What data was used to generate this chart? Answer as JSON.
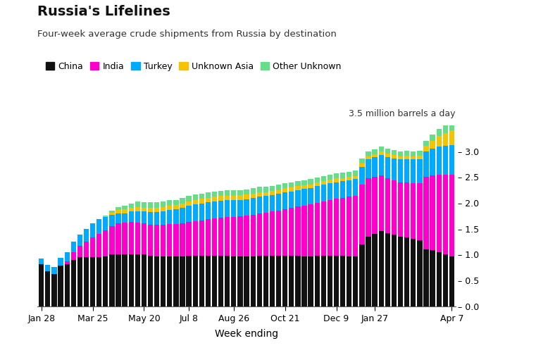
{
  "title": "Russia's Lifelines",
  "subtitle": "Four-week average crude shipments from Russia by destination",
  "xlabel": "Week ending",
  "annotation": "3.5 million barrels a day",
  "legend_labels": [
    "China",
    "India",
    "Turkey",
    "Unknown Asia",
    "Other Unknown"
  ],
  "colors": [
    "#111111",
    "#FF00CC",
    "#00AAFF",
    "#F5C400",
    "#66DD88"
  ],
  "ylim": [
    0,
    3.5
  ],
  "yticks": [
    0,
    0.5,
    1.0,
    1.5,
    2.0,
    2.5,
    3.0
  ],
  "xtick_labels": [
    "Jan 28",
    "Mar 25",
    "May 20",
    "Jul 8",
    "Aug 26",
    "Oct 21",
    "Dec 9",
    "Jan 27",
    "Apr 7"
  ],
  "xtick_positions": [
    0,
    8,
    16,
    23,
    30,
    38,
    46,
    52,
    64
  ],
  "background_color": "#FFFFFF",
  "num_bars": 65,
  "china": [
    0.82,
    0.68,
    0.62,
    0.78,
    0.82,
    0.9,
    0.95,
    0.95,
    0.95,
    0.95,
    0.97,
    1.0,
    1.0,
    1.0,
    1.0,
    1.0,
    1.0,
    0.98,
    0.97,
    0.97,
    0.97,
    0.97,
    0.97,
    0.98,
    0.98,
    0.98,
    0.98,
    0.98,
    0.98,
    0.98,
    0.97,
    0.97,
    0.97,
    0.97,
    0.98,
    0.98,
    0.98,
    0.98,
    0.98,
    0.98,
    0.98,
    0.97,
    0.97,
    0.98,
    0.98,
    0.98,
    0.98,
    0.98,
    0.97,
    0.97,
    1.2,
    1.35,
    1.4,
    1.45,
    1.42,
    1.38,
    1.35,
    1.33,
    1.3,
    1.28,
    1.1,
    1.08,
    1.05,
    1.0,
    0.97
  ],
  "india": [
    0.0,
    0.0,
    0.0,
    0.0,
    0.05,
    0.15,
    0.22,
    0.3,
    0.38,
    0.45,
    0.5,
    0.55,
    0.6,
    0.62,
    0.63,
    0.62,
    0.6,
    0.6,
    0.6,
    0.6,
    0.62,
    0.62,
    0.63,
    0.65,
    0.67,
    0.68,
    0.7,
    0.72,
    0.73,
    0.75,
    0.76,
    0.77,
    0.78,
    0.8,
    0.82,
    0.83,
    0.85,
    0.87,
    0.9,
    0.92,
    0.95,
    0.98,
    1.0,
    1.02,
    1.05,
    1.08,
    1.1,
    1.12,
    1.15,
    1.17,
    1.15,
    1.12,
    1.1,
    1.08,
    1.05,
    1.05,
    1.05,
    1.07,
    1.08,
    1.1,
    1.4,
    1.45,
    1.5,
    1.55,
    1.58
  ],
  "turkey": [
    0.1,
    0.12,
    0.14,
    0.15,
    0.18,
    0.2,
    0.22,
    0.25,
    0.27,
    0.28,
    0.25,
    0.22,
    0.2,
    0.18,
    0.2,
    0.22,
    0.23,
    0.24,
    0.25,
    0.26,
    0.27,
    0.28,
    0.3,
    0.31,
    0.32,
    0.33,
    0.33,
    0.33,
    0.33,
    0.32,
    0.32,
    0.32,
    0.32,
    0.32,
    0.32,
    0.32,
    0.32,
    0.32,
    0.32,
    0.32,
    0.32,
    0.32,
    0.32,
    0.32,
    0.32,
    0.32,
    0.32,
    0.32,
    0.32,
    0.32,
    0.35,
    0.37,
    0.38,
    0.4,
    0.42,
    0.43,
    0.44,
    0.45,
    0.46,
    0.47,
    0.5,
    0.52,
    0.54,
    0.55,
    0.57
  ],
  "unknown_asia": [
    0.0,
    0.0,
    0.0,
    0.0,
    0.0,
    0.0,
    0.0,
    0.0,
    0.0,
    0.0,
    0.02,
    0.04,
    0.06,
    0.07,
    0.07,
    0.08,
    0.08,
    0.09,
    0.09,
    0.09,
    0.09,
    0.09,
    0.09,
    0.09,
    0.09,
    0.09,
    0.09,
    0.09,
    0.09,
    0.09,
    0.09,
    0.09,
    0.09,
    0.09,
    0.09,
    0.08,
    0.08,
    0.08,
    0.08,
    0.08,
    0.07,
    0.07,
    0.07,
    0.07,
    0.07,
    0.07,
    0.07,
    0.06,
    0.06,
    0.06,
    0.06,
    0.06,
    0.06,
    0.06,
    0.06,
    0.06,
    0.06,
    0.06,
    0.06,
    0.06,
    0.1,
    0.15,
    0.2,
    0.25,
    0.28
  ],
  "other_unknown": [
    0.0,
    0.0,
    0.0,
    0.0,
    0.0,
    0.0,
    0.0,
    0.0,
    0.0,
    0.0,
    0.02,
    0.04,
    0.06,
    0.08,
    0.09,
    0.1,
    0.1,
    0.1,
    0.1,
    0.1,
    0.1,
    0.1,
    0.1,
    0.1,
    0.1,
    0.1,
    0.1,
    0.1,
    0.1,
    0.1,
    0.1,
    0.1,
    0.1,
    0.1,
    0.1,
    0.1,
    0.1,
    0.1,
    0.1,
    0.1,
    0.1,
    0.1,
    0.1,
    0.1,
    0.1,
    0.1,
    0.1,
    0.1,
    0.1,
    0.1,
    0.1,
    0.1,
    0.1,
    0.1,
    0.1,
    0.1,
    0.1,
    0.1,
    0.1,
    0.1,
    0.1,
    0.12,
    0.14,
    0.16,
    0.18
  ]
}
